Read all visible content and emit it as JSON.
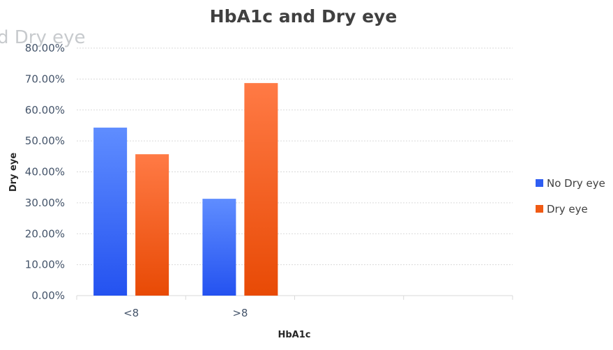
{
  "chart_data": {
    "type": "bar",
    "title": "HbA1c and Dry eye",
    "xlabel": "HbA1c",
    "ylabel": "Dry eye",
    "categories": [
      "<8",
      ">8"
    ],
    "series": [
      {
        "name": "No Dry eye",
        "values": [
          54.3,
          31.3
        ],
        "color": "#2f5ef2"
      },
      {
        "name": "Dry eye",
        "values": [
          45.7,
          68.7
        ],
        "color": "#f05a14"
      }
    ],
    "ylim": [
      0,
      80
    ],
    "yticks": [
      "0.00%",
      "10.00%",
      "20.00%",
      "30.00%",
      "40.00%",
      "50.00%",
      "60.00%",
      "70.00%",
      "80.00%"
    ],
    "grid": true,
    "legend": "right",
    "ghost_text": "d Dry eye"
  }
}
